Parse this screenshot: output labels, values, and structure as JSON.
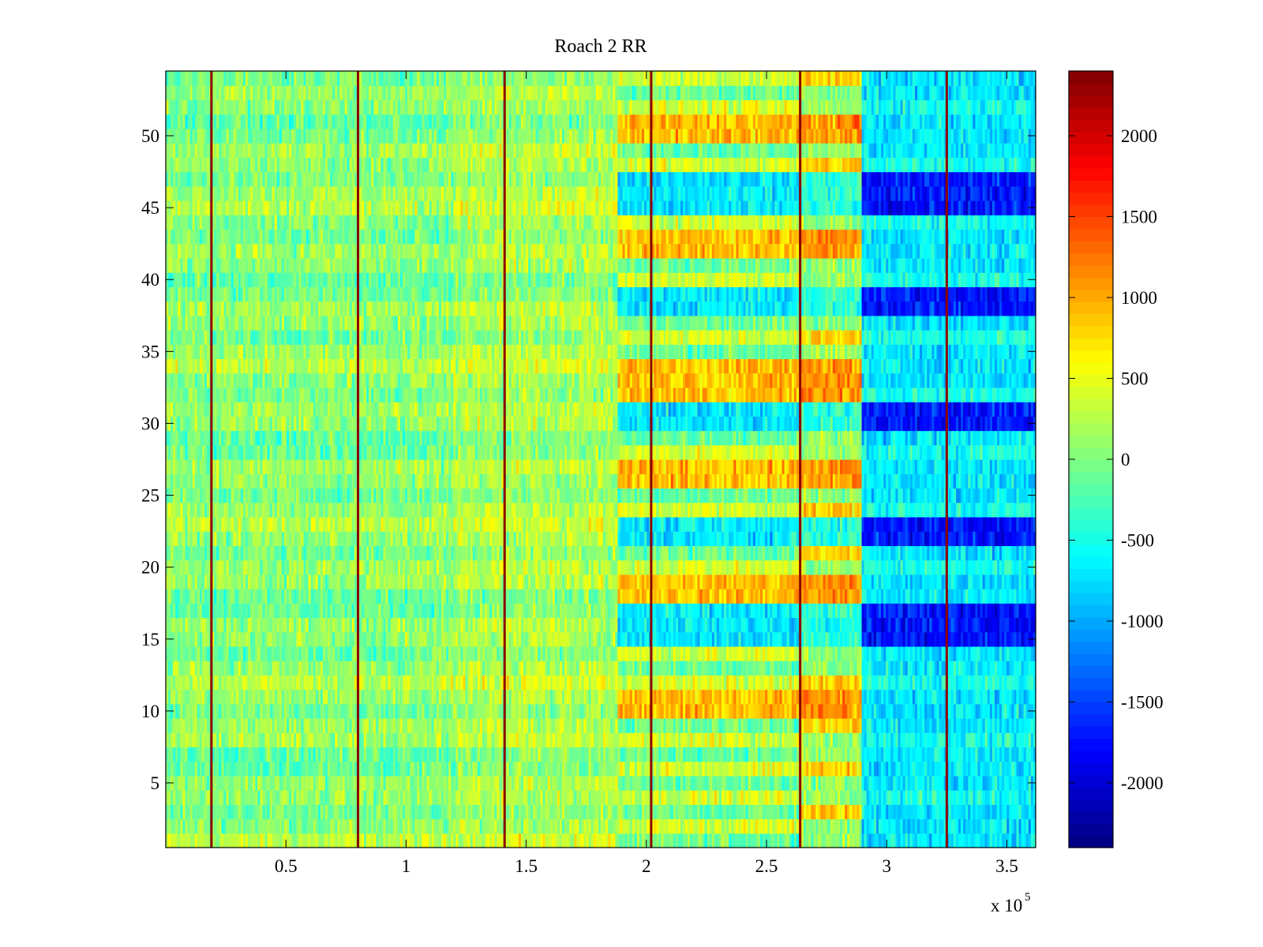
{
  "chart_data": {
    "type": "heatmap",
    "title": "Roach 2 RR",
    "xlabel": "",
    "ylabel": "",
    "x_exponent_label": "x 10",
    "x_exponent_power": "5",
    "xlim": [
      0.0,
      3.62
    ],
    "ylim": [
      0.5,
      54.5
    ],
    "rows": 54,
    "xticks": [
      "0.5",
      "1",
      "1.5",
      "2",
      "2.5",
      "3",
      "3.5"
    ],
    "xtick_values": [
      0.5,
      1.0,
      1.5,
      2.0,
      2.5,
      3.0,
      3.5
    ],
    "yticks": [
      "5",
      "10",
      "15",
      "20",
      "25",
      "30",
      "35",
      "40",
      "45",
      "50"
    ],
    "ytick_values": [
      5,
      10,
      15,
      20,
      25,
      30,
      35,
      40,
      45,
      50
    ],
    "colorbar": {
      "colormap": "jet",
      "clim": [
        -2400,
        2400
      ],
      "ticks": [
        "-2000",
        "-1500",
        "-1000",
        "-500",
        "0",
        "500",
        "1000",
        "1500",
        "2000"
      ],
      "tick_values": [
        -2000,
        -1500,
        -1000,
        -500,
        0,
        500,
        1000,
        1500,
        2000
      ]
    },
    "stimulus_lines_x": [
      0.19,
      0.8,
      1.41,
      2.02,
      2.64,
      3.25
    ],
    "segments": [
      {
        "x_start": 0.0,
        "x_end": 1.88,
        "mean": 0,
        "description": "baseline, mostly -500..800"
      },
      {
        "x_start": 1.88,
        "x_end": 2.64,
        "mean": 300,
        "description": "alternating rows high/low"
      },
      {
        "x_start": 2.64,
        "x_end": 2.9,
        "mean": 400,
        "description": "strong row pattern"
      },
      {
        "x_start": 2.9,
        "x_end": 3.62,
        "mean": -800,
        "description": "predominantly negative, deep blue bands"
      }
    ],
    "deep_blue_rows": [
      15,
      16,
      17,
      22,
      23,
      30,
      31,
      38,
      39,
      45,
      46,
      47
    ],
    "high_red_rows": [
      10,
      11,
      18,
      19,
      26,
      27,
      32,
      33,
      34,
      42,
      43,
      50,
      51
    ]
  }
}
